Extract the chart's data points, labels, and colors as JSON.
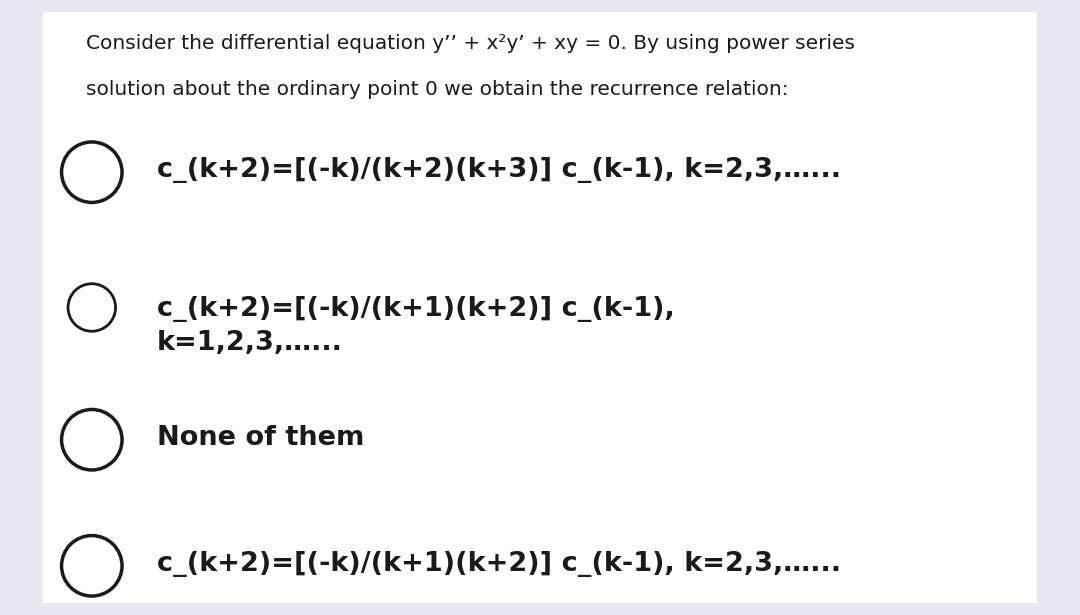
{
  "bg_color": "#e8e8f0",
  "card_color": "#ffffff",
  "title_line1": "Consider the differential equation y’’ + x²y’ + xy = 0. By using power series",
  "title_line2": "solution about the ordinary point 0 we obtain the recurrence relation:",
  "options": [
    {
      "label": "c_(k+2)=[(-k)/(k+2)(k+3)] c_(k-1), k=2,3,…...",
      "circle_lw": 2.5,
      "circle_r": 0.028
    },
    {
      "label": "c_(k+2)=[(-k)/(k+1)(k+2)] c_(k-1),\nk=1,2,3,…...",
      "circle_lw": 2.0,
      "circle_r": 0.022
    },
    {
      "label": "None of them",
      "circle_lw": 2.5,
      "circle_r": 0.028
    },
    {
      "label": "c_(k+2)=[(-k)/(k+1)(k+2)] c_(k-1), k=2,3,…...",
      "circle_lw": 2.5,
      "circle_r": 0.028
    }
  ],
  "text_color": "#1a1a1a",
  "title_fontsize": 14.5,
  "option_fontsize": 19.5
}
